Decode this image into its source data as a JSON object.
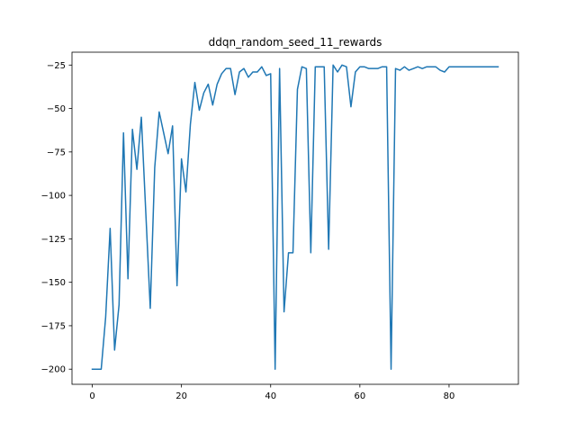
{
  "chart_data": {
    "type": "line",
    "title": "ddqn_random_seed_11_rewards",
    "xlabel": "",
    "ylabel": "",
    "xlim": [
      -4.55,
      95.55
    ],
    "ylim": [
      -208.7,
      -17.6
    ],
    "xticks": [
      0,
      20,
      40,
      60,
      80
    ],
    "yticks": [
      -200,
      -175,
      -150,
      -125,
      -100,
      -75,
      -50,
      -25
    ],
    "grid": false,
    "series": [
      {
        "color": "#1f77b4",
        "x": [
          0,
          1,
          2,
          3,
          4,
          5,
          6,
          7,
          8,
          9,
          10,
          11,
          12,
          13,
          14,
          15,
          16,
          17,
          18,
          19,
          20,
          21,
          22,
          23,
          24,
          25,
          26,
          27,
          28,
          29,
          30,
          31,
          32,
          33,
          34,
          35,
          36,
          37,
          38,
          39,
          40,
          41,
          42,
          43,
          44,
          45,
          46,
          47,
          48,
          49,
          50,
          51,
          52,
          53,
          54,
          55,
          56,
          57,
          58,
          59,
          60,
          61,
          62,
          63,
          64,
          65,
          66,
          67,
          68,
          69,
          70,
          71,
          72,
          73,
          74,
          75,
          76,
          77,
          78,
          79,
          80,
          81,
          82,
          83,
          84,
          85,
          86,
          87,
          88,
          89,
          90,
          91
        ],
        "values": [
          -200,
          -200,
          -200,
          -170,
          -119,
          -189,
          -163,
          -64,
          -148,
          -62,
          -85,
          -55,
          -110,
          -165,
          -84,
          -52,
          -64,
          -76,
          -60,
          -152,
          -79,
          -98,
          -59,
          -35,
          -51,
          -41,
          -36,
          -48,
          -36,
          -30,
          -27,
          -27,
          -42,
          -29,
          -27,
          -32,
          -29,
          -29,
          -26,
          -31,
          -30,
          -200,
          -27,
          -167,
          -133,
          -133,
          -39,
          -26,
          -27,
          -133,
          -26,
          -26,
          -26,
          -131,
          -25,
          -29,
          -25,
          -26,
          -49,
          -29,
          -26,
          -26,
          -27,
          -27,
          -27,
          -26,
          -26,
          -200,
          -27,
          -28,
          -26,
          -28,
          -27,
          -26,
          -27,
          -26,
          -26,
          -26,
          -28,
          -29,
          -26,
          -26,
          -26,
          -26,
          -26,
          -26,
          -26,
          -26,
          -26,
          -26,
          -26,
          -26
        ]
      }
    ]
  }
}
